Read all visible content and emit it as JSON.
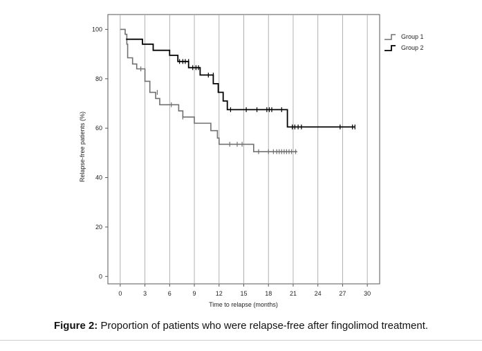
{
  "chart_data": {
    "type": "line",
    "subtype": "kaplan-meier step curve",
    "xlabel": "Time to relapse (months)",
    "ylabel": "Relapse-free patients (%)",
    "xlim": [
      -1.5,
      31.5
    ],
    "ylim": [
      -3,
      106
    ],
    "xticks": [
      "0",
      "3",
      "6",
      "9",
      "12",
      "15",
      "18",
      "21",
      "24",
      "27",
      "30"
    ],
    "yticks": [
      "0",
      "20",
      "40",
      "60",
      "80",
      "100"
    ],
    "grid": "vertical lines at x ticks",
    "legend": "top-right, outside plot",
    "series": [
      {
        "name": "Group 1",
        "color": "#707070",
        "steps": [
          [
            0,
            100
          ],
          [
            0.6,
            100
          ],
          [
            0.6,
            98
          ],
          [
            0.8,
            98
          ],
          [
            0.8,
            94
          ],
          [
            0.9,
            94
          ],
          [
            0.9,
            88.5
          ],
          [
            1.5,
            88.5
          ],
          [
            1.5,
            86
          ],
          [
            2,
            86
          ],
          [
            2,
            84
          ],
          [
            3,
            84
          ],
          [
            3,
            79
          ],
          [
            3.6,
            79
          ],
          [
            3.6,
            74.5
          ],
          [
            4.3,
            74.5
          ],
          [
            4.3,
            72
          ],
          [
            4.8,
            72
          ],
          [
            4.8,
            69.5
          ],
          [
            7.1,
            69.5
          ],
          [
            7.1,
            67
          ],
          [
            7.6,
            67
          ],
          [
            7.6,
            64.5
          ],
          [
            9,
            64.5
          ],
          [
            9,
            62
          ],
          [
            11,
            62
          ],
          [
            11,
            59
          ],
          [
            11.8,
            59
          ],
          [
            11.8,
            56
          ],
          [
            12,
            56
          ],
          [
            12,
            53.5
          ],
          [
            16.2,
            53.5
          ],
          [
            16.2,
            50.5
          ],
          [
            21.5,
            50.5
          ]
        ],
        "censored": [
          [
            2.5,
            84
          ],
          [
            4.5,
            74.5
          ],
          [
            6.2,
            69.5
          ],
          [
            7.6,
            64.5
          ],
          [
            13.3,
            53.5
          ],
          [
            14.2,
            53.5
          ],
          [
            14.8,
            53.5
          ],
          [
            16.8,
            50.5
          ],
          [
            18,
            50.5
          ],
          [
            18.6,
            50.5
          ],
          [
            19,
            50.5
          ],
          [
            19.3,
            50.5
          ],
          [
            19.6,
            50.5
          ],
          [
            19.9,
            50.5
          ],
          [
            20.2,
            50.5
          ],
          [
            20.5,
            50.5
          ],
          [
            20.8,
            50.5
          ],
          [
            21.3,
            50.5
          ]
        ]
      },
      {
        "name": "Group 2",
        "color": "#000000",
        "steps": [
          [
            0.7,
            96
          ],
          [
            2.7,
            96
          ],
          [
            2.7,
            94
          ],
          [
            4,
            94
          ],
          [
            4,
            91.5
          ],
          [
            6,
            91.5
          ],
          [
            6,
            89.5
          ],
          [
            7,
            89.5
          ],
          [
            7,
            87
          ],
          [
            8.3,
            87
          ],
          [
            8.3,
            84.5
          ],
          [
            9.7,
            84.5
          ],
          [
            9.7,
            81.5
          ],
          [
            11.3,
            81.5
          ],
          [
            11.3,
            78
          ],
          [
            11.9,
            78
          ],
          [
            11.9,
            74.5
          ],
          [
            12.5,
            74.5
          ],
          [
            12.5,
            71
          ],
          [
            13,
            71
          ],
          [
            13,
            67.5
          ],
          [
            20.3,
            67.5
          ],
          [
            20.3,
            60.5
          ],
          [
            28.5,
            60.5
          ]
        ],
        "censored": [
          [
            7.2,
            87
          ],
          [
            7.6,
            87
          ],
          [
            7.9,
            87
          ],
          [
            8.3,
            87
          ],
          [
            8.8,
            84.5
          ],
          [
            9.2,
            84.5
          ],
          [
            9.5,
            84.5
          ],
          [
            10.7,
            81.5
          ],
          [
            11.3,
            81.5
          ],
          [
            13.4,
            67.5
          ],
          [
            15.3,
            67.5
          ],
          [
            16.6,
            67.5
          ],
          [
            17.8,
            67.5
          ],
          [
            18.1,
            67.5
          ],
          [
            18.4,
            67.5
          ],
          [
            19.6,
            67.5
          ],
          [
            20.9,
            60.5
          ],
          [
            21.2,
            60.5
          ],
          [
            21.6,
            60.5
          ],
          [
            22,
            60.5
          ],
          [
            26.7,
            60.5
          ],
          [
            28.2,
            60.5
          ],
          [
            28.5,
            60.5
          ]
        ]
      }
    ]
  },
  "caption": {
    "label": "Figure 2:",
    "text": " Proportion of patients who were relapse-free after fingolimod treatment."
  }
}
